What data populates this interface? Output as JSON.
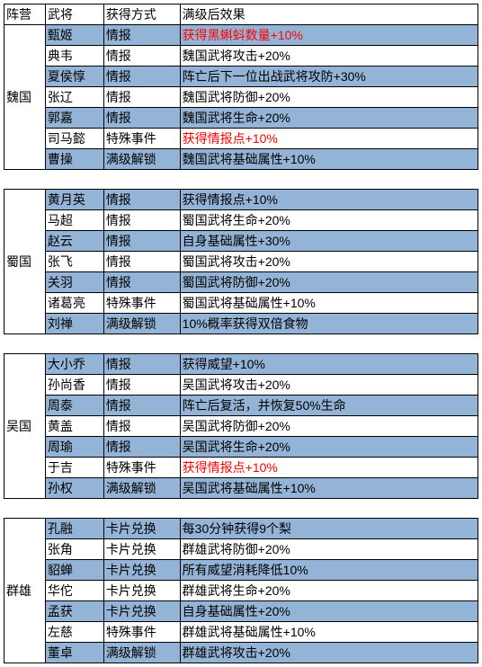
{
  "header": {
    "camp": "阵营",
    "hero": "武将",
    "method": "获得方式",
    "effect": "满级后效果"
  },
  "groups": [
    {
      "camp": "魏国",
      "rows": [
        {
          "hero": "甄姬",
          "method": "情报",
          "effect": "获得黑蝌蚪数量+10%",
          "hl": true,
          "red": true
        },
        {
          "hero": "典韦",
          "method": "情报",
          "effect": "魏国武将攻击+20%",
          "hl": false,
          "red": false
        },
        {
          "hero": "夏侯惇",
          "method": "情报",
          "effect": "阵亡后下一位出战武将攻防+30%",
          "hl": true,
          "red": false
        },
        {
          "hero": "张辽",
          "method": "情报",
          "effect": "魏国武将防御+20%",
          "hl": false,
          "red": false
        },
        {
          "hero": "郭嘉",
          "method": "情报",
          "effect": "魏国武将生命+20%",
          "hl": true,
          "red": false
        },
        {
          "hero": "司马懿",
          "method": "特殊事件",
          "effect": "获得情报点+10%",
          "hl": false,
          "red": true
        },
        {
          "hero": "曹操",
          "method": "满级解锁",
          "effect": "魏国武将基础属性+10%",
          "hl": true,
          "red": false
        }
      ]
    },
    {
      "camp": "蜀国",
      "rows": [
        {
          "hero": "黄月英",
          "method": "情报",
          "effect": "获得情报点+10%",
          "hl": true,
          "red": false
        },
        {
          "hero": "马超",
          "method": "情报",
          "effect": "蜀国武将生命+20%",
          "hl": false,
          "red": false
        },
        {
          "hero": "赵云",
          "method": "情报",
          "effect": "自身基础属性+30%",
          "hl": true,
          "red": false
        },
        {
          "hero": "张飞",
          "method": "情报",
          "effect": "蜀国武将攻击+20%",
          "hl": false,
          "red": false
        },
        {
          "hero": "关羽",
          "method": "情报",
          "effect": "蜀国武将防御+20%",
          "hl": true,
          "red": false
        },
        {
          "hero": "诸葛亮",
          "method": "特殊事件",
          "effect": "蜀国武将基础属性+10%",
          "hl": false,
          "red": false
        },
        {
          "hero": "刘禅",
          "method": "满级解锁",
          "effect": "10%概率获得双倍食物",
          "hl": true,
          "red": false
        }
      ]
    },
    {
      "camp": "吴国",
      "rows": [
        {
          "hero": "大小乔",
          "method": "情报",
          "effect": "获得威望+10%",
          "hl": true,
          "red": false
        },
        {
          "hero": "孙尚香",
          "method": "情报",
          "effect": "吴国武将攻击+20%",
          "hl": false,
          "red": false
        },
        {
          "hero": "周泰",
          "method": "情报",
          "effect": "阵亡后复活，并恢复50%生命",
          "hl": true,
          "red": false
        },
        {
          "hero": "黄盖",
          "method": "情报",
          "effect": "吴国武将防御+20%",
          "hl": false,
          "red": false
        },
        {
          "hero": "周瑜",
          "method": "情报",
          "effect": "吴国武将生命+20%",
          "hl": true,
          "red": false
        },
        {
          "hero": "于吉",
          "method": "特殊事件",
          "effect": "获得情报点+10%",
          "hl": false,
          "red": true
        },
        {
          "hero": "孙权",
          "method": "满级解锁",
          "effect": "吴国武将基础属性+10%",
          "hl": true,
          "red": false
        }
      ]
    },
    {
      "camp": "群雄",
      "rows": [
        {
          "hero": "孔融",
          "method": "卡片兑换",
          "effect": "每30分钟获得9个梨",
          "hl": true,
          "red": false
        },
        {
          "hero": "张角",
          "method": "卡片兑换",
          "effect": "群雄武将防御+20%",
          "hl": false,
          "red": false
        },
        {
          "hero": "貂蝉",
          "method": "卡片兑换",
          "effect": "所有威望消耗降低10%",
          "hl": true,
          "red": false
        },
        {
          "hero": "华佗",
          "method": "卡片兑换",
          "effect": "群雄武将生命+20%",
          "hl": false,
          "red": false
        },
        {
          "hero": "孟获",
          "method": "卡片兑换",
          "effect": "自身基础属性+20%",
          "hl": true,
          "red": false
        },
        {
          "hero": "左慈",
          "method": "特殊事件",
          "effect": "群雄武将基础属性+10%",
          "hl": false,
          "red": false
        },
        {
          "hero": "董卓",
          "method": "满级解锁",
          "effect": "群雄武将攻击+20%",
          "hl": true,
          "red": false
        }
      ]
    }
  ]
}
